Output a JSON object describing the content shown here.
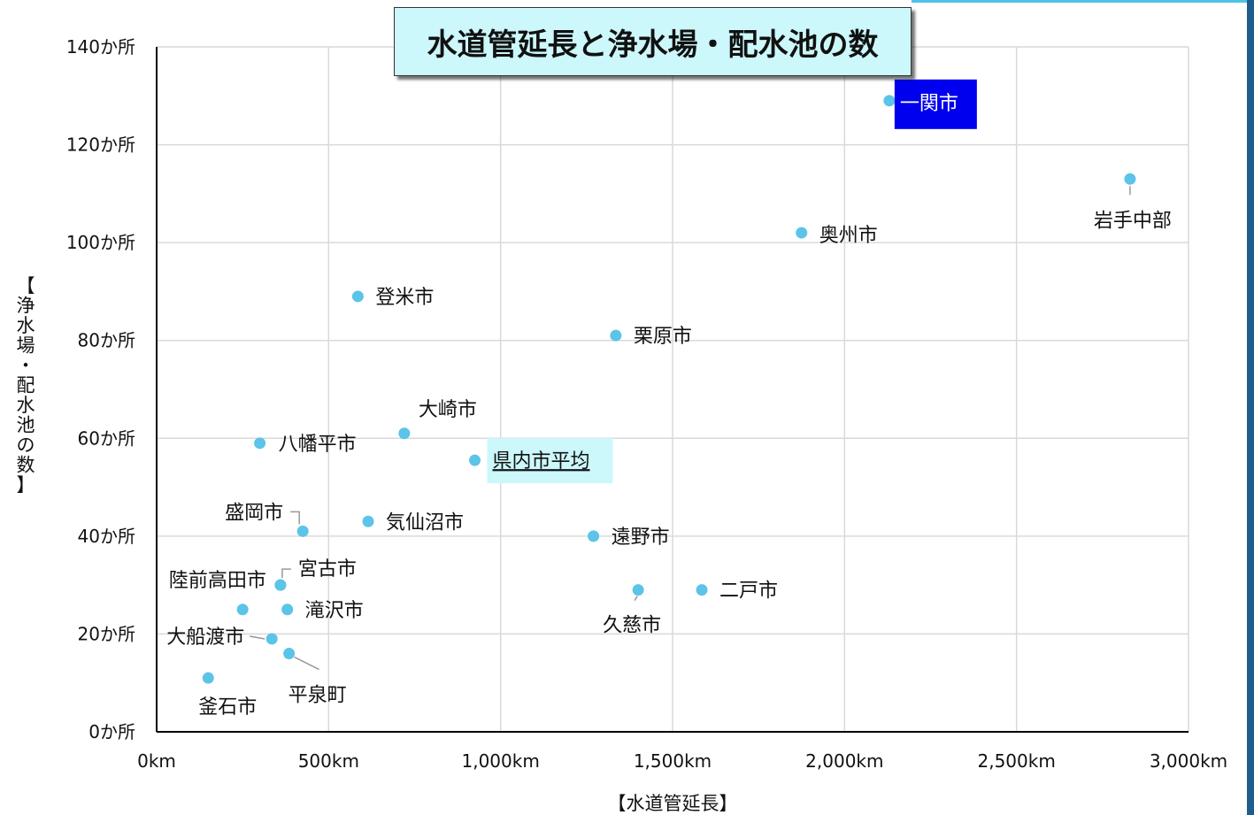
{
  "chart_data": {
    "type": "scatter",
    "title": "水道管延長と浄水場・配水池の数",
    "xlabel": "【水道管延長】",
    "ylabel": "【浄水場・配水池の数】",
    "xlim": [
      0,
      3000
    ],
    "ylim": [
      0,
      140
    ],
    "x_ticks": [
      0,
      500,
      1000,
      1500,
      2000,
      2500,
      3000
    ],
    "x_tick_labels": [
      "0km",
      "500km",
      "1,000km",
      "1,500km",
      "2,000km",
      "2,500km",
      "3,000km"
    ],
    "y_ticks": [
      0,
      20,
      40,
      60,
      80,
      100,
      120,
      140
    ],
    "y_tick_labels": [
      "0か所",
      "20か所",
      "40か所",
      "60か所",
      "80か所",
      "100か所",
      "120か所",
      "140か所"
    ],
    "grid": true,
    "colors": {
      "point": "#5bc4e8",
      "highlight_bg": "#0000ee",
      "highlight_text": "#ffffff",
      "average_bg": "#ccf7fb",
      "grid": "#d9d9d9",
      "axis": "#000000",
      "leader": "#999999"
    },
    "points": [
      {
        "label": "一関市",
        "x": 2130,
        "y": 129,
        "style": "highlight"
      },
      {
        "label": "岩手中部",
        "x": 2830,
        "y": 113
      },
      {
        "label": "奥州市",
        "x": 1875,
        "y": 102
      },
      {
        "label": "登米市",
        "x": 585,
        "y": 89
      },
      {
        "label": "栗原市",
        "x": 1335,
        "y": 81
      },
      {
        "label": "大崎市",
        "x": 720,
        "y": 61
      },
      {
        "label": "八幡平市",
        "x": 300,
        "y": 59
      },
      {
        "label": "県内市平均",
        "x": 925,
        "y": 55.5,
        "style": "average"
      },
      {
        "label": "盛岡市",
        "x": 425,
        "y": 41
      },
      {
        "label": "気仙沼市",
        "x": 615,
        "y": 43
      },
      {
        "label": "遠野市",
        "x": 1270,
        "y": 40
      },
      {
        "label": "宮古市",
        "x": 360,
        "y": 30
      },
      {
        "label": "陸前高田市",
        "x": 360,
        "y": 30
      },
      {
        "label": "久慈市",
        "x": 1400,
        "y": 29
      },
      {
        "label": "二戸市",
        "x": 1585,
        "y": 29
      },
      {
        "label": "",
        "x": 250,
        "y": 25
      },
      {
        "label": "滝沢市",
        "x": 380,
        "y": 25
      },
      {
        "label": "大船渡市",
        "x": 335,
        "y": 19
      },
      {
        "label": "平泉町",
        "x": 385,
        "y": 16
      },
      {
        "label": "釜石市",
        "x": 150,
        "y": 11
      }
    ]
  }
}
